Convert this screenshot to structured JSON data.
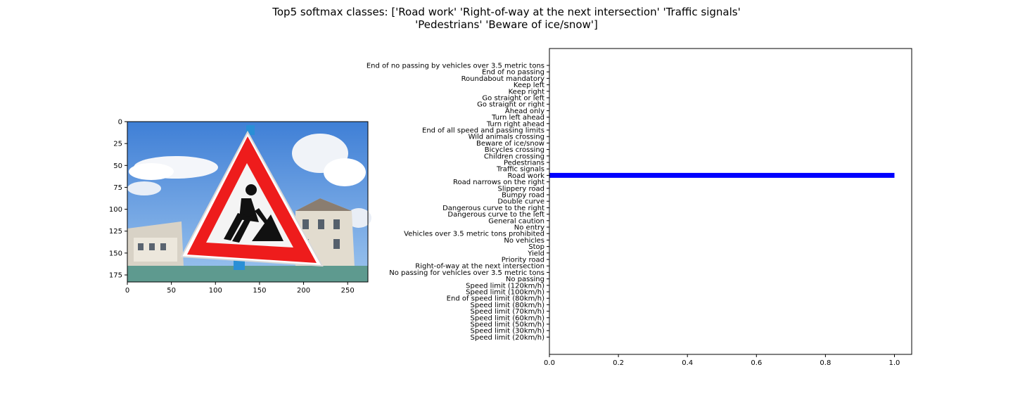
{
  "figure": {
    "title_lines": [
      "Top5 softmax classes: ['Road work' 'Right-of-way at the next intersection' 'Traffic signals'",
      "'Pedestrians' 'Beware of ice/snow']"
    ]
  },
  "chart_data": [
    {
      "type": "image",
      "content": "road-work-sign-photo",
      "xlim": [
        0,
        273
      ],
      "ylim": [
        183,
        0
      ],
      "x_ticks": [
        0,
        50,
        100,
        150,
        200,
        250
      ],
      "y_ticks": [
        0,
        25,
        50,
        75,
        100,
        125,
        150,
        175
      ]
    },
    {
      "type": "bar",
      "orientation": "horizontal",
      "xlim": [
        0,
        1.05
      ],
      "x_ticks": [
        0.0,
        0.2,
        0.4,
        0.6,
        0.8,
        1.0
      ],
      "x_tick_labels": [
        "0.0",
        "0.2",
        "0.4",
        "0.6",
        "0.8",
        "1.0"
      ],
      "bar_color": "#0000ff",
      "categories": [
        "Speed limit (20km/h)",
        "Speed limit (30km/h)",
        "Speed limit (50km/h)",
        "Speed limit (60km/h)",
        "Speed limit (70km/h)",
        "Speed limit (80km/h)",
        "End of speed limit (80km/h)",
        "Speed limit (100km/h)",
        "Speed limit (120km/h)",
        "No passing",
        "No passing for vehicles over 3.5 metric tons",
        "Right-of-way at the next intersection",
        "Priority road",
        "Yield",
        "Stop",
        "No vehicles",
        "Vehicles over 3.5 metric tons prohibited",
        "No entry",
        "General caution",
        "Dangerous curve to the left",
        "Dangerous curve to the right",
        "Double curve",
        "Bumpy road",
        "Slippery road",
        "Road narrows on the right",
        "Road work",
        "Traffic signals",
        "Pedestrians",
        "Children crossing",
        "Bicycles crossing",
        "Beware of ice/snow",
        "Wild animals crossing",
        "End of all speed and passing limits",
        "Turn right ahead",
        "Turn left ahead",
        "Ahead only",
        "Go straight or right",
        "Go straight or left",
        "Keep right",
        "Keep left",
        "Roundabout mandatory",
        "End of no passing",
        "End of no passing by vehicles over 3.5 metric tons"
      ],
      "values": [
        0,
        0,
        0,
        0,
        0,
        0,
        0,
        0,
        0,
        0,
        0,
        0,
        0,
        0,
        0,
        0,
        0,
        0,
        0,
        0,
        0,
        0,
        0,
        0,
        0,
        1.0,
        0,
        0,
        0,
        0,
        0,
        0,
        0,
        0,
        0,
        0,
        0,
        0,
        0,
        0,
        0,
        0,
        0
      ]
    }
  ]
}
